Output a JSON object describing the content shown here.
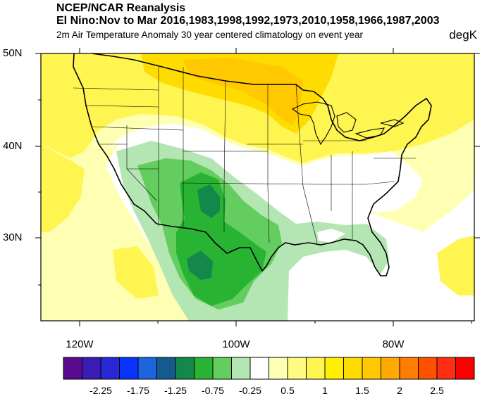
{
  "titles": {
    "source": "NCEP/NCAR Reanalysis",
    "event": "El Nino:Nov to Mar 2016,1983,1998,1992,1973,2010,1958,1966,1987,2003",
    "description": "2m Air Temperature Anomaly 30 year centered climatology on event year",
    "units": "degK"
  },
  "map": {
    "lat_labels": [
      "50N",
      "40N",
      "30N"
    ],
    "lon_labels": [
      "120W",
      "100W",
      "80W"
    ]
  },
  "colorbar": {
    "labels": [
      "-2.25",
      "-1.75",
      "-1.25",
      "-0.75",
      "-0.25",
      "0.5",
      "1",
      "1.5",
      "2",
      "2.5"
    ],
    "colors": [
      "#5a0a8c",
      "#3c1ab4",
      "#2828d2",
      "#0a32ff",
      "#1e64dc",
      "#145a8c",
      "#14874b",
      "#28b432",
      "#64cd5f",
      "#b4e6b4",
      "#ffffff",
      "#ffffb4",
      "#fffa82",
      "#fff550",
      "#fff000",
      "#ffdc00",
      "#ffc800",
      "#ffaa00",
      "#ff7d00",
      "#ff5000",
      "#ff2d14",
      "#ff0000"
    ]
  },
  "colors": {
    "warm_light": "#ffffb4",
    "warm_mid": "#fff550",
    "warm_strong": "#ffdc00",
    "warm_peak": "#ffc800",
    "cool_light": "#b4e6b4",
    "cool_mid": "#64cd5f",
    "cool_strong": "#28b432",
    "cool_peak": "#14874b"
  }
}
